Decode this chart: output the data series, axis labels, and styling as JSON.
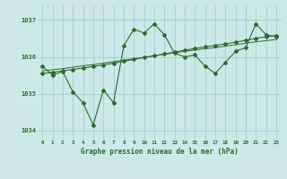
{
  "hours": [
    0,
    1,
    2,
    3,
    4,
    5,
    6,
    7,
    8,
    9,
    10,
    11,
    12,
    13,
    14,
    15,
    16,
    17,
    18,
    19,
    20,
    21,
    22,
    23
  ],
  "pressure_jagged": [
    1035.75,
    1035.5,
    1035.6,
    1035.05,
    1034.75,
    1034.15,
    1035.1,
    1034.75,
    1036.3,
    1036.75,
    1036.65,
    1036.9,
    1036.6,
    1036.1,
    1036.0,
    1036.05,
    1035.75,
    1035.55,
    1035.85,
    1036.15,
    1036.25,
    1036.9,
    1036.6,
    1036.55
  ],
  "pressure_trend": [
    1035.55,
    1035.58,
    1035.62,
    1035.66,
    1035.7,
    1035.74,
    1035.78,
    1035.83,
    1035.88,
    1035.93,
    1035.98,
    1036.03,
    1036.08,
    1036.13,
    1036.18,
    1036.23,
    1036.27,
    1036.31,
    1036.35,
    1036.4,
    1036.45,
    1036.5,
    1036.55,
    1036.58
  ],
  "pressure_trend2": [
    1035.62,
    1035.65,
    1035.68,
    1035.72,
    1035.76,
    1035.79,
    1035.83,
    1035.87,
    1035.91,
    1035.95,
    1035.99,
    1036.03,
    1036.07,
    1036.11,
    1036.15,
    1036.19,
    1036.22,
    1036.25,
    1036.29,
    1036.33,
    1036.37,
    1036.41,
    1036.44,
    1036.47
  ],
  "line_color": "#2d6a2d",
  "bg_color": "#cce8e8",
  "grid_color": "#99cccc",
  "xlabel": "Graphe pression niveau de la mer (hPa)",
  "ylim_min": 1033.75,
  "ylim_max": 1037.4,
  "yticks": [
    1034,
    1035,
    1036,
    1037
  ],
  "marker_size": 2.0,
  "line_width": 0.8
}
